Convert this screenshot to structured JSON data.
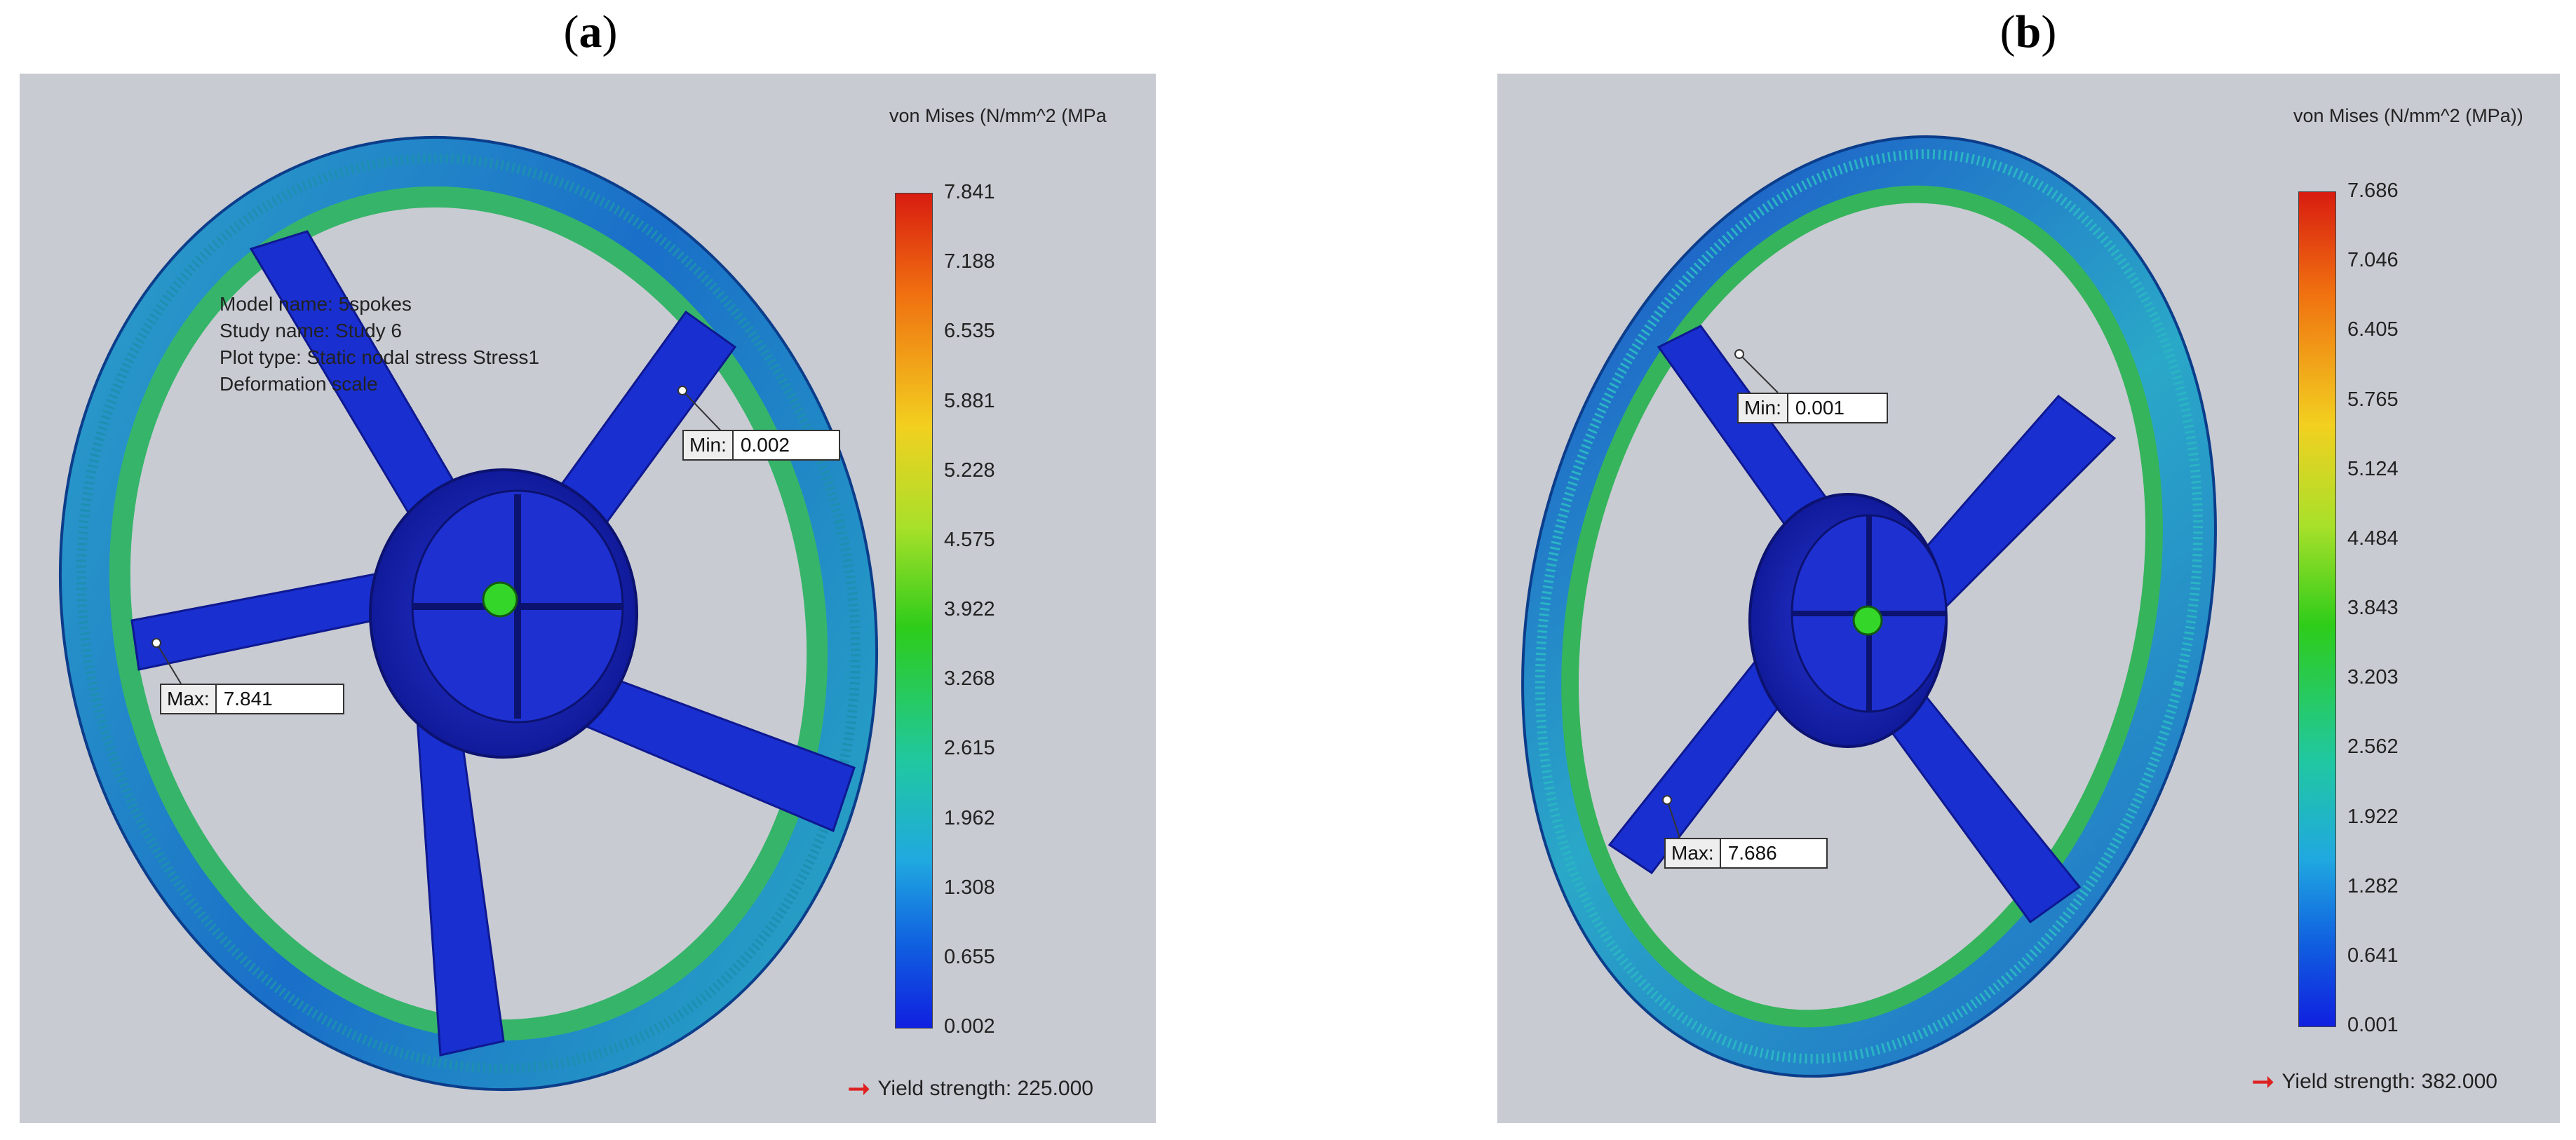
{
  "panels": [
    {
      "label": "a",
      "legend_title": "von Mises (N/mm^2 (MPa",
      "ticks": [
        "7.841",
        "7.188",
        "6.535",
        "5.881",
        "5.228",
        "4.575",
        "3.922",
        "3.268",
        "2.615",
        "1.962",
        "1.308",
        "0.655",
        "0.002"
      ],
      "min_label": "Min:",
      "min_value": "0.002",
      "max_label": "Max:",
      "max_value": "7.841",
      "info_lines": [
        "Model name: 5spokes",
        "Study name: Study 6",
        "Plot type: Static nodal stress Stress1",
        "Deformation scale"
      ],
      "yield_text": "Yield strength: 225.000"
    },
    {
      "label": "b",
      "legend_title": "von Mises (N/mm^2 (MPa))",
      "ticks": [
        "7.686",
        "7.046",
        "6.405",
        "5.765",
        "5.124",
        "4.484",
        "3.843",
        "3.203",
        "2.562",
        "1.922",
        "1.282",
        "0.641",
        "0.001"
      ],
      "min_label": "Min:",
      "min_value": "0.001",
      "max_label": "Max:",
      "max_value": "7.686",
      "yield_text": "Yield strength: 382.000"
    }
  ],
  "colors": {
    "background": "#c9cbd3",
    "scale_max": "#d81c10",
    "scale_mid": "#2ecc1a",
    "scale_min": "#1020e0",
    "spoke": "#1a2fd0"
  }
}
